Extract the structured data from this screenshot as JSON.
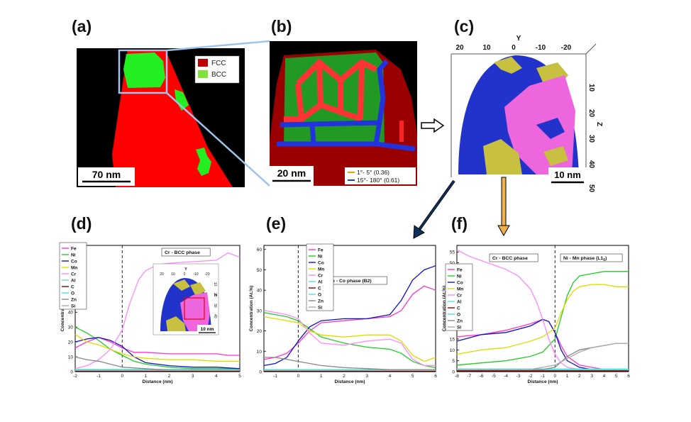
{
  "panel_labels": {
    "a": "(a)",
    "b": "(b)",
    "c": "(c)",
    "d": "(d)",
    "e": "(e)",
    "f": "(f)"
  },
  "panel_a": {
    "legend": [
      {
        "name": "FCC",
        "color": "#c00000"
      },
      {
        "name": "BCC",
        "color": "#7de33b"
      }
    ],
    "scale_bar": "70 nm",
    "colors": {
      "fcc": "#ff0000",
      "bcc": "#22ee22",
      "background": "#000000"
    }
  },
  "panel_b": {
    "scale_bar": "20 nm",
    "legend": [
      {
        "name": "1°- 5° (0.36)",
        "color": "#f0a000"
      },
      {
        "name": "15°- 180° (0.61)",
        "color": "#2040c0"
      }
    ]
  },
  "panel_c": {
    "y_axis_title": "Y",
    "y_ticks": [
      "20",
      "10",
      "0",
      "-10",
      "-20"
    ],
    "z_axis_title": "Z",
    "z_ticks": [
      "10",
      "20",
      "30",
      "40",
      "50"
    ],
    "scale_bar": "10 nm",
    "colors": {
      "blue": "#2233cc",
      "yellow": "#c8c040",
      "pink": "#ee66dd"
    }
  },
  "legend_elements": [
    {
      "name": "Fe",
      "color": "#ff33cc"
    },
    {
      "name": "Ni",
      "color": "#22cc22"
    },
    {
      "name": "Co",
      "color": "#1111cc"
    },
    {
      "name": "Mn",
      "color": "#dddd00"
    },
    {
      "name": "Cr",
      "color": "#ff88ff"
    },
    {
      "name": "Al",
      "color": "#66ddcc"
    },
    {
      "name": "C",
      "color": "#880000"
    },
    {
      "name": "O",
      "color": "#55dddd"
    },
    {
      "name": "Zn",
      "color": "#888888"
    },
    {
      "name": "Si",
      "color": "#aaaaaa"
    }
  ],
  "chart_data": [
    {
      "id": "d",
      "type": "line",
      "xlabel": "Distance (nm)",
      "ylabel": "Concentration (At.%)",
      "xlim": [
        -2,
        5
      ],
      "ylim": [
        0,
        85
      ],
      "xticks": [
        "-2",
        "-1",
        "0",
        "1",
        "2",
        "3",
        "4",
        "5"
      ],
      "yticks": [
        "0",
        "10",
        "20",
        "30",
        "40",
        "50",
        "60",
        "70",
        "80"
      ],
      "interface_x": 0,
      "annotations": [
        "Cr - BCC phase"
      ],
      "inset": {
        "y_axis_title": "Y",
        "y_ticks": [
          "20",
          "10",
          "0",
          "-10",
          "-20"
        ],
        "z_axis_title": "Z",
        "z_ticks": [
          "10",
          "20",
          "30",
          "40",
          "50"
        ],
        "scale_bar": "10 nm"
      },
      "series": [
        {
          "name": "Fe",
          "x": [
            -2,
            -1.5,
            -1,
            -0.5,
            0,
            0.5,
            1,
            2,
            3,
            4,
            4.5,
            5
          ],
          "values": [
            16,
            20,
            23,
            20,
            16,
            13,
            13,
            12,
            12,
            12,
            11,
            11
          ]
        },
        {
          "name": "Ni",
          "x": [
            -2,
            -1.5,
            -1,
            -0.5,
            0,
            0.5,
            1,
            2,
            3,
            4,
            5
          ],
          "values": [
            30,
            26,
            21,
            15,
            11,
            7,
            5,
            3,
            2,
            2,
            2
          ]
        },
        {
          "name": "Co",
          "x": [
            -2,
            -1.5,
            -1,
            -0.5,
            0,
            0.5,
            1,
            2,
            3,
            4,
            5
          ],
          "values": [
            20,
            22,
            23,
            21,
            17,
            10,
            6,
            4,
            3,
            3,
            2
          ]
        },
        {
          "name": "Mn",
          "x": [
            -2,
            -1.5,
            -1,
            -0.5,
            0,
            0.5,
            1,
            2,
            3,
            4,
            5
          ],
          "values": [
            25,
            20,
            18,
            15,
            12,
            10,
            9,
            8,
            8,
            7,
            7
          ]
        },
        {
          "name": "Cr",
          "x": [
            -2,
            -1.5,
            -1,
            -0.5,
            0,
            0.3,
            0.7,
            1,
            1.5,
            2,
            3,
            4,
            4.5,
            5
          ],
          "values": [
            2,
            4,
            8,
            15,
            28,
            45,
            62,
            68,
            72,
            73,
            74,
            75,
            80,
            77
          ]
        },
        {
          "name": "Al",
          "x": [
            -2,
            5
          ],
          "values": [
            1,
            1
          ]
        },
        {
          "name": "C",
          "x": [
            -2,
            5
          ],
          "values": [
            0.5,
            0.5
          ]
        },
        {
          "name": "O",
          "x": [
            -2,
            5
          ],
          "values": [
            1.5,
            1.5
          ]
        },
        {
          "name": "Zn",
          "x": [
            -2,
            -1.5,
            -1,
            -0.5,
            0,
            1,
            2,
            3,
            4,
            5
          ],
          "values": [
            10,
            8,
            7,
            5,
            3,
            2,
            1,
            1,
            1,
            1
          ]
        },
        {
          "name": "Si",
          "x": [
            -2,
            5
          ],
          "values": [
            0.8,
            0.8
          ]
        }
      ]
    },
    {
      "id": "e",
      "type": "line",
      "xlabel": "Distance (nm)",
      "ylabel": "Concentration (At.%)",
      "xlim": [
        -1.5,
        6
      ],
      "ylim": [
        0,
        62
      ],
      "xticks": [
        "-1",
        "0",
        "1",
        "2",
        "3",
        "4",
        "5",
        "6"
      ],
      "yticks": [
        "0",
        "10",
        "20",
        "30",
        "40",
        "50",
        "60"
      ],
      "interface_x": 0,
      "annotations": [
        "Fe - Co phase (B2)"
      ],
      "series": [
        {
          "name": "Fe",
          "x": [
            -1.5,
            -1,
            -0.5,
            0,
            0.5,
            1,
            2,
            3,
            4,
            4.5,
            5,
            5.5,
            6
          ],
          "values": [
            6,
            7,
            9,
            14,
            20,
            24,
            25,
            26,
            27,
            30,
            38,
            42,
            40
          ]
        },
        {
          "name": "Ni",
          "x": [
            -1.5,
            -1,
            -0.5,
            0,
            0.5,
            1,
            2,
            3,
            4,
            4.5,
            5,
            5.5,
            6
          ],
          "values": [
            29,
            28,
            27,
            25,
            21,
            17,
            14,
            12,
            11,
            9,
            5,
            3,
            2
          ]
        },
        {
          "name": "Co",
          "x": [
            -1.5,
            -1,
            -0.5,
            0,
            0.5,
            1,
            2,
            3,
            4,
            4.5,
            5,
            5.5,
            6
          ],
          "values": [
            3,
            4,
            7,
            15,
            22,
            25,
            26,
            26,
            28,
            35,
            45,
            50,
            52
          ]
        },
        {
          "name": "Mn",
          "x": [
            -1.5,
            -1,
            -0.5,
            0,
            0.5,
            1,
            2,
            3,
            4,
            4.5,
            5,
            5.5,
            6
          ],
          "values": [
            27,
            26,
            25,
            24,
            20,
            18,
            17,
            18,
            18,
            15,
            8,
            5,
            7
          ]
        },
        {
          "name": "Cr",
          "x": [
            -1.5,
            -1,
            -0.5,
            0,
            0.5,
            1,
            2,
            3,
            4,
            4.5,
            5,
            5.5,
            6
          ],
          "values": [
            30,
            29,
            28,
            26,
            19,
            14,
            13,
            15,
            16,
            14,
            6,
            3,
            3
          ]
        },
        {
          "name": "Al",
          "x": [
            -1.5,
            6
          ],
          "values": [
            0.8,
            0.8
          ]
        },
        {
          "name": "C",
          "x": [
            -1.5,
            6
          ],
          "values": [
            0.4,
            0.4
          ]
        },
        {
          "name": "O",
          "x": [
            -1.5,
            6
          ],
          "values": [
            1,
            1
          ]
        },
        {
          "name": "Zn",
          "x": [
            -1.5,
            -1,
            0,
            1,
            2,
            3,
            4,
            5,
            6
          ],
          "values": [
            7,
            7,
            5,
            3,
            2,
            1.5,
            1,
            1,
            1
          ]
        },
        {
          "name": "Si",
          "x": [
            -1.5,
            6
          ],
          "values": [
            0.6,
            0.6
          ]
        }
      ]
    },
    {
      "id": "f",
      "type": "line",
      "xlabel": "Distance (nm)",
      "ylabel": "Concentration (At.%)",
      "xlim": [
        -8,
        6
      ],
      "ylim": [
        0,
        58
      ],
      "xticks": [
        "-8",
        "-7",
        "-6",
        "-5",
        "-4",
        "-3",
        "-2",
        "-1",
        "0",
        "1",
        "2",
        "3",
        "4",
        "5",
        "6"
      ],
      "yticks": [
        "0",
        "5",
        "10",
        "15",
        "20",
        "25",
        "30",
        "35",
        "40",
        "45",
        "50",
        "55"
      ],
      "interface_x": 0,
      "annotations": [
        "Cr - BCC phase",
        "Ni - Mn phase (L1"
      ],
      "annotation_subscript": "0",
      "annotation_suffix": ")",
      "series": [
        {
          "name": "Fe",
          "x": [
            -8,
            -6,
            -4,
            -2,
            -1,
            -0.5,
            0,
            0.5,
            1,
            2,
            3,
            4,
            5,
            6
          ],
          "values": [
            16,
            17,
            19,
            22,
            24,
            23,
            18,
            12,
            7,
            3,
            2,
            1,
            1,
            1
          ]
        },
        {
          "name": "Ni",
          "x": [
            -8,
            -6,
            -4,
            -2,
            -1,
            0,
            0.5,
            1,
            1.5,
            2,
            3,
            4,
            5,
            6
          ],
          "values": [
            3,
            4,
            5,
            7,
            9,
            15,
            25,
            35,
            41,
            44,
            45,
            46,
            46,
            46
          ]
        },
        {
          "name": "Co",
          "x": [
            -8,
            -6,
            -4,
            -2,
            -1,
            -0.5,
            0,
            0.5,
            1,
            2,
            3,
            4,
            5,
            6
          ],
          "values": [
            14,
            17,
            18,
            21,
            24,
            23,
            18,
            10,
            5,
            2,
            1,
            1,
            1,
            1
          ]
        },
        {
          "name": "Mn",
          "x": [
            -8,
            -6,
            -4,
            -2,
            -1,
            0,
            0.5,
            1,
            1.5,
            2,
            3,
            4,
            5,
            6
          ],
          "values": [
            8,
            10,
            11,
            14,
            16,
            20,
            27,
            33,
            37,
            39,
            40,
            40,
            39,
            39
          ]
        },
        {
          "name": "Cr",
          "x": [
            -8,
            -7,
            -6,
            -5,
            -4,
            -3,
            -2,
            -1.5,
            -1,
            -0.5,
            0,
            0.5,
            1,
            2,
            3,
            4,
            5,
            6
          ],
          "values": [
            56,
            53,
            51,
            49,
            47,
            44,
            38,
            32,
            24,
            15,
            8,
            4,
            2,
            1,
            1,
            1,
            1,
            1
          ]
        },
        {
          "name": "Al",
          "x": [
            -8,
            6
          ],
          "values": [
            0.8,
            0.8
          ]
        },
        {
          "name": "C",
          "x": [
            -8,
            6
          ],
          "values": [
            0.4,
            0.4
          ]
        },
        {
          "name": "O",
          "x": [
            -8,
            6
          ],
          "values": [
            1.2,
            1.2
          ]
        },
        {
          "name": "Zn",
          "x": [
            -8,
            -4,
            -2,
            -1,
            0,
            1,
            2,
            3,
            4,
            5,
            6
          ],
          "values": [
            1,
            1,
            1,
            1,
            2,
            7,
            10,
            11,
            12,
            13,
            13
          ]
        },
        {
          "name": "Si",
          "x": [
            -8,
            -4,
            -2,
            -1,
            0,
            1,
            2,
            3,
            4,
            5,
            6
          ],
          "values": [
            1,
            1,
            1,
            2,
            3,
            6,
            9,
            11,
            12,
            13,
            13
          ]
        }
      ]
    }
  ]
}
